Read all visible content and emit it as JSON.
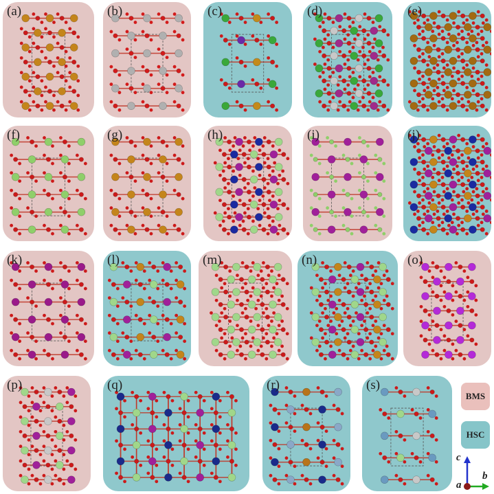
{
  "panels": [
    {
      "label": "(a)",
      "category": "BMS",
      "motif": "slab",
      "palette": [
        "#c4851b",
        "#d9d12a",
        "#cc1a1a"
      ]
    },
    {
      "label": "(b)",
      "category": "BMS",
      "motif": "grid",
      "palette": [
        "#b0b0b0",
        "#b8741a",
        "#d31b1b"
      ]
    },
    {
      "label": "(c)",
      "category": "HSC",
      "motif": "sparse",
      "palette": [
        "#3aa83a",
        "#6a2aa8",
        "#c48a1b",
        "#cc1a1a"
      ]
    },
    {
      "label": "(d)",
      "category": "HSC",
      "motif": "dense",
      "palette": [
        "#3aa83a",
        "#c8c8c8",
        "#a02a8a",
        "#cc1a1a"
      ]
    },
    {
      "label": "(e)",
      "category": "HSC",
      "motif": "lattice",
      "palette": [
        "#a36a12",
        "#a0209a",
        "#cc1a1a"
      ]
    },
    {
      "label": "(f)",
      "category": "BMS",
      "motif": "grid",
      "palette": [
        "#8fcf6a",
        "#1a2aa0",
        "#cc1a1a"
      ]
    },
    {
      "label": "(g)",
      "category": "BMS",
      "motif": "grid",
      "palette": [
        "#c4851b",
        "#1a2aa0",
        "#cc1a1a"
      ]
    },
    {
      "label": "(h)",
      "category": "BMS",
      "motif": "dense",
      "palette": [
        "#a0d78a",
        "#1a2aa0",
        "#a0209a",
        "#cc1a1a"
      ]
    },
    {
      "label": "(i)",
      "category": "BMS",
      "motif": "grid",
      "palette": [
        "#a0209a",
        "#c8c8e8",
        "#8fcf6a"
      ]
    },
    {
      "label": "(j)",
      "category": "HSC",
      "motif": "lattice",
      "palette": [
        "#1a2aa0",
        "#a0209a",
        "#c4851b",
        "#cc1a1a"
      ]
    },
    {
      "label": "(k)",
      "category": "BMS",
      "motif": "grid",
      "palette": [
        "#9a1a8a",
        "#cc1a1a"
      ]
    },
    {
      "label": "(l)",
      "category": "HSC",
      "motif": "layers",
      "palette": [
        "#a0d78a",
        "#a0209a",
        "#c4851b",
        "#cc1a1a"
      ]
    },
    {
      "label": "(m)",
      "category": "BMS",
      "motif": "dense",
      "palette": [
        "#a0d78a",
        "#c4851b",
        "#cc1a1a"
      ]
    },
    {
      "label": "(n)",
      "category": "HSC",
      "motif": "dense",
      "palette": [
        "#a0d78a",
        "#a0209a",
        "#c4851b",
        "#cc1a1a"
      ]
    },
    {
      "label": "(o)",
      "category": "BMS",
      "motif": "slab",
      "palette": [
        "#b42ad8",
        "#c4851b",
        "#cc1a1a"
      ]
    },
    {
      "label": "(p)",
      "category": "BMS",
      "motif": "slab",
      "palette": [
        "#a0d78a",
        "#a0209a",
        "#c8c8c8",
        "#cc1a1a"
      ]
    },
    {
      "label": "(q)",
      "category": "HSC",
      "motif": "grid",
      "palette": [
        "#1a2a8a",
        "#a0d78a",
        "#a0209a",
        "#cc1a1a"
      ]
    },
    {
      "label": "(r)",
      "category": "HSC",
      "motif": "grid",
      "palette": [
        "#1a2a8a",
        "#8aa8c8",
        "#b8741a",
        "#cc1a1a"
      ]
    },
    {
      "label": "(s)",
      "category": "HSC",
      "motif": "sparse",
      "palette": [
        "#6a9ac0",
        "#a0d78a",
        "#c8c8c8",
        "#cc1a1a"
      ]
    }
  ],
  "legend": {
    "items": [
      {
        "label": "BMS",
        "color": "#eac0bc"
      },
      {
        "label": "HSC",
        "color": "#86c5c9"
      }
    ]
  },
  "axes": {
    "c": "c",
    "b": "b",
    "a": "a",
    "c_color": "#2233cc",
    "b_color": "#22aa22",
    "a_color": "#8a1a1a"
  },
  "colors": {
    "BMS": "#e3c6c4",
    "HSC": "#8fc8cc"
  }
}
